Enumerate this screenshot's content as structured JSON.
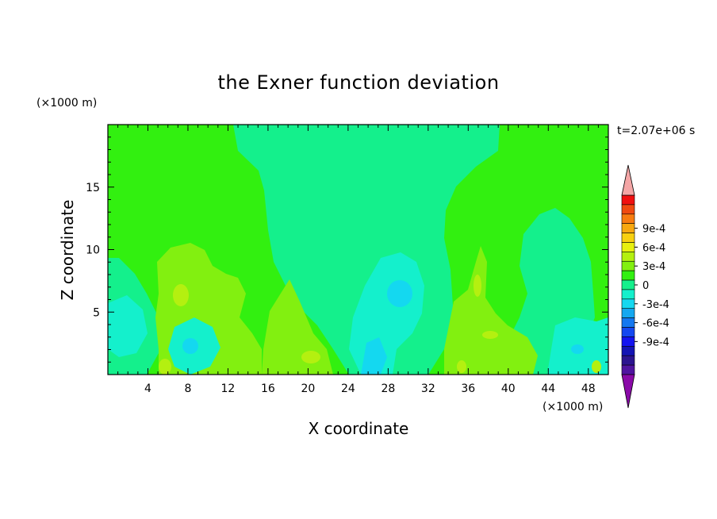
{
  "chart_data": {
    "type": "heatmap",
    "title": "the Exner function deviation",
    "xlabel": "X coordinate",
    "ylabel": "Z coordinate",
    "x_unit_label": "(×1000 m)",
    "y_unit_label": "(×1000 m)",
    "time_label": "t=2.07e+06 s",
    "xlim": [
      0,
      50
    ],
    "ylim": [
      0,
      20
    ],
    "x_ticks": [
      4,
      8,
      12,
      16,
      20,
      24,
      28,
      32,
      36,
      40,
      44,
      48
    ],
    "y_ticks": [
      5,
      10,
      15
    ],
    "colorbar": {
      "tick_labels": [
        "9e-4",
        "6e-4",
        "3e-4",
        "0",
        "-3e-4",
        "-6e-4",
        "-9e-4"
      ],
      "tick_values": [
        0.0009,
        0.0006,
        0.0003,
        0,
        -0.0003,
        -0.0006,
        -0.0009
      ],
      "levels_step": 0.00015,
      "over_color": "#f4a6a6",
      "under_color": "#8a0aa8",
      "band_colors_top_to_bottom": [
        "#f01010",
        "#f04a10",
        "#f87c10",
        "#f8a810",
        "#f8d010",
        "#e8f010",
        "#b4f010",
        "#82f010",
        "#32f010",
        "#14f08c",
        "#14f0cc",
        "#14d8f0",
        "#14a8f0",
        "#1478f0",
        "#1448f0",
        "#1414f0",
        "#1414b4",
        "#2c1490",
        "#5014a0"
      ]
    },
    "field_description": "contoured field; predominantly near 0 with slightly negative values (-1.5e-4 to -3e-4) in the central upper region and lower left/right, slightly positive (+1.5e-4 to +3e-4) near x=6-10 km and x=36-40 km below z=10 km"
  }
}
